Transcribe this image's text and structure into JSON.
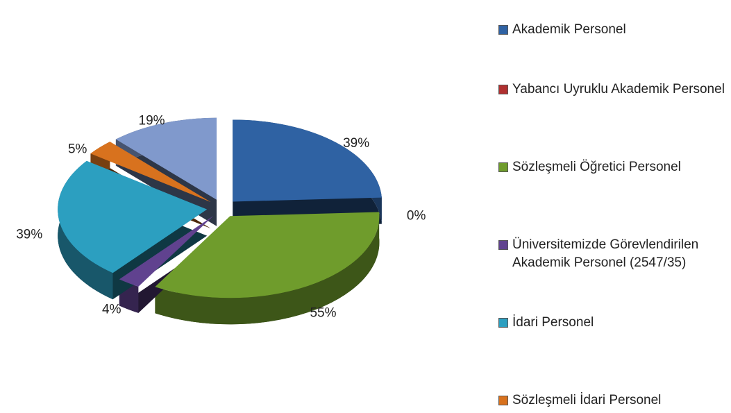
{
  "chart_data": {
    "type": "pie",
    "categories": [
      "Akademik Personel",
      "Yabancı Uyruklu Akademik Personel",
      "Sözleşmeli Öğretici Personel",
      "Üniversitemizde Görevlendirilen Akademik Personel (2547/35)",
      "İdari Personel",
      "Sözleşmeli İdari Personel",
      null
    ],
    "values": [
      39,
      0,
      55,
      4,
      39,
      5,
      19
    ],
    "colors": [
      "#2f62a3",
      "#b03030",
      "#6f9c2c",
      "#60428f",
      "#2c9fc0",
      "#d8721e",
      "#8099cc"
    ],
    "legend": "right"
  }
}
